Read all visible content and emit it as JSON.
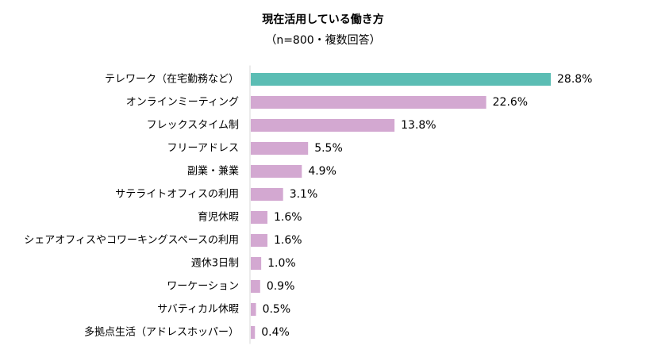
{
  "chart_data": {
    "type": "bar",
    "orientation": "horizontal",
    "title": "現在活用している働き方",
    "subtitle": "（n=800・複数回答）",
    "categories": [
      "テレワーク（在宅勤務など）",
      "オンラインミーティング",
      "フレックスタイム制",
      "フリーアドレス",
      "副業・兼業",
      "サテライトオフィスの利用",
      "育児休暇",
      "シェアオフィスやコワーキングスペースの利用",
      "週休3日制",
      "ワーケーション",
      "サバティカル休暇",
      "多拠点生活（アドレスホッパー）"
    ],
    "values": [
      28.8,
      22.6,
      13.8,
      5.5,
      4.9,
      3.1,
      1.6,
      1.6,
      1.0,
      0.9,
      0.5,
      0.4
    ],
    "value_labels": [
      "28.8%",
      "22.6%",
      "13.8%",
      "5.5%",
      "4.9%",
      "3.1%",
      "1.6%",
      "1.6%",
      "1.0%",
      "0.9%",
      "0.5%",
      "0.4%"
    ],
    "xlim": [
      0,
      30
    ],
    "colors": {
      "highlight": "#5bbdb4",
      "default": "#d3a8d1",
      "axis": "#d9d9d9"
    },
    "highlight_index": 0,
    "grid": false,
    "legend": "none"
  }
}
